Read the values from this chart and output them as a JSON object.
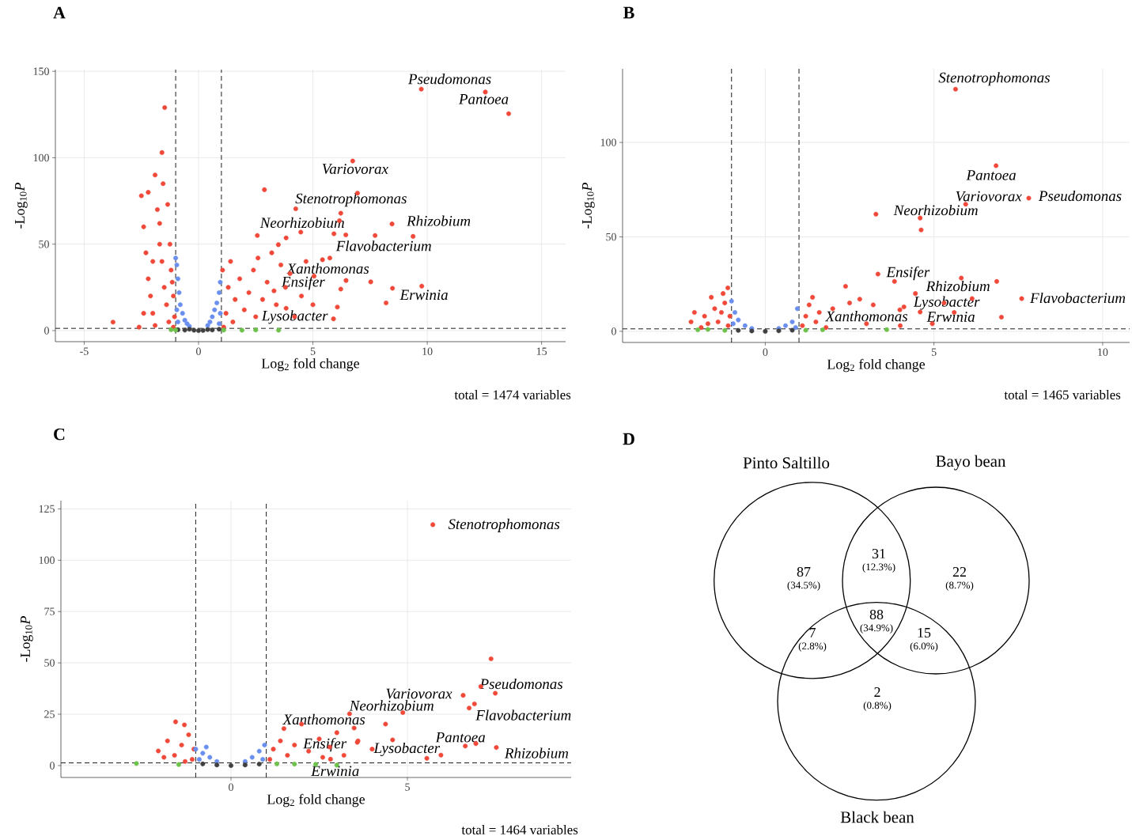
{
  "chart_data": [
    {
      "type": "scatter",
      "title": "A",
      "xlabel": "Log$_{2}$ fold change",
      "ylabel": "-Log$_{10}$*P*",
      "xlim": [
        -6.26,
        16.05
      ],
      "ylim": [
        -6.4,
        151
      ],
      "xticks": [
        -5,
        0,
        5,
        10,
        15
      ],
      "yticks": [
        0,
        50,
        100,
        150
      ],
      "grid": true,
      "series": [
        {
          "color": "#f0493a",
          "x": [
            -3.74,
            -2.6,
            -2.5,
            -2.4,
            -2.2,
            -2.3,
            -2.2,
            -2.1,
            -2.0,
            -2.4,
            -1.9,
            -1.8,
            -1.7,
            -1.6,
            -1.48,
            -1.6,
            -1.5,
            -1.4,
            -1.3,
            -1.2,
            -1.1,
            -1.05,
            -1.9,
            -1.7,
            -2.0,
            -1.35,
            -1.55,
            -1.25,
            -1.15,
            -1.1,
            1.1,
            1.2,
            1.3,
            1.5,
            1.6,
            1.8,
            2.0,
            2.2,
            2.4,
            2.5,
            2.6,
            2.8,
            3.0,
            3.2,
            3.4,
            3.6,
            3.8,
            4.0,
            4.2,
            4.5,
            4.7,
            5.0,
            1.05,
            1.4,
            2.88,
            4.25,
            2.57,
            3.83,
            3.49,
            6.95,
            9.38,
            8.2,
            8.48,
            7.53,
            6.45,
            6.22,
            6.07,
            5.9,
            6.44,
            6.16,
            5.92,
            5.74,
            5.05,
            13.56,
            9.74,
            12.54,
            6.74,
            6.22,
            8.46,
            4.47,
            7.72,
            5.42,
            3.3,
            3.83,
            9.76
          ],
          "values": [
            4.9,
            2,
            78,
            60,
            80,
            45,
            30,
            20,
            10,
            10,
            90,
            70,
            50,
            103,
            129,
            40,
            25,
            15,
            5,
            35,
            20,
            8,
            3,
            62,
            40,
            73,
            85,
            50,
            28,
            2,
            2,
            10,
            25,
            5,
            18,
            30,
            12,
            22,
            35,
            8,
            42,
            18,
            28,
            45,
            15,
            38,
            25,
            33,
            8,
            20,
            40,
            15,
            35,
            40,
            81.5,
            70.5,
            55,
            53.6,
            49.7,
            79.5,
            54.5,
            16,
            24.5,
            28.2,
            29,
            24,
            13.6,
            6.8,
            55.4,
            63.6,
            56,
            42,
            31.5,
            125.5,
            139.7,
            138,
            98.1,
            67.9,
            61.7,
            57,
            55,
            41,
            23,
            12.9,
            25.7
          ]
        },
        {
          "color": "#6a8fef",
          "x": [
            -1,
            -0.95,
            -0.9,
            -0.85,
            -0.8,
            -0.7,
            -0.6,
            -0.5,
            -0.4,
            0.4,
            0.5,
            0.6,
            0.7,
            0.8,
            0.9,
            0.95,
            -0.9,
            0.9,
            -0.95,
            0.95
          ],
          "values": [
            42,
            38,
            30,
            22,
            15,
            10,
            6,
            4,
            2.5,
            3,
            5,
            8,
            12,
            16,
            22,
            28,
            5,
            4,
            12,
            10
          ]
        },
        {
          "color": "#404040",
          "x": [
            -0.9,
            -0.6,
            -0.4,
            -0.2,
            0,
            0.2,
            0.4,
            0.6,
            0.9
          ],
          "values": [
            0.5,
            0.3,
            0.8,
            0.2,
            0,
            0.1,
            0.6,
            0.4,
            0.8
          ]
        },
        {
          "color": "#6cc24a",
          "x": [
            -1.2,
            -1.0,
            1.1,
            1.9,
            2.5,
            3.5
          ],
          "values": [
            0.5,
            0.3,
            0.3,
            0.2,
            0.4,
            0.2
          ]
        }
      ],
      "ref_lines": [
        {
          "axis": "x",
          "value": -1,
          "line_style": "dashed"
        },
        {
          "axis": "x",
          "value": 1,
          "line_style": "dashed"
        },
        {
          "axis": "y",
          "value": 1.3,
          "line_style": "dashed"
        }
      ],
      "annotations": [
        {
          "text": "Pseudomonas",
          "x": 9.74,
          "y": 139.7
        },
        {
          "text": "Pantoea",
          "x": 12.54,
          "y": 138
        },
        {
          "text": "Variovorax",
          "x": 6.74,
          "y": 98.1
        },
        {
          "text": "Stenotrophomonas",
          "x": 6.22,
          "y": 67.9
        },
        {
          "text": "Rhizobium",
          "x": 8.46,
          "y": 61.7
        },
        {
          "text": "Neorhizobium",
          "x": 4.47,
          "y": 57
        },
        {
          "text": "Flavobacterium",
          "x": 7.72,
          "y": 55
        },
        {
          "text": "Xanthomonas",
          "x": 5.42,
          "y": 41
        },
        {
          "text": "Ensifer",
          "x": 3.3,
          "y": 23
        },
        {
          "text": "Lysobacter",
          "x": 3.83,
          "y": 12.9
        },
        {
          "text": "Erwinia",
          "x": 9.76,
          "y": 25.7
        },
        "total = 1474 variables"
      ]
    },
    {
      "type": "scatter",
      "title": "B",
      "xlabel": "Log$_{2}$ fold change",
      "ylabel": "-Log$_{10}$*P*",
      "xlim": [
        -4.23,
        10.8
      ],
      "ylim": [
        -5.9,
        139
      ],
      "xticks": [
        0,
        5,
        10
      ],
      "yticks": [
        0,
        50,
        100
      ],
      "grid": true,
      "series": [
        {
          "color": "#f0493a",
          "x": [
            -2.2,
            -2.1,
            -1.9,
            -1.8,
            -1.6,
            -1.5,
            -1.4,
            -1.3,
            -1.2,
            -1.11,
            -1.1,
            -1.05,
            -1.7,
            -1.25,
            1.1,
            1.2,
            1.3,
            1.5,
            1.6,
            1.8,
            2.0,
            2.38,
            2.5,
            3.0,
            3.2,
            3.83,
            4.0,
            4.45,
            4.95,
            5.3,
            6.13,
            3.28,
            4.62,
            6.86,
            7.0,
            1.4,
            2.8,
            5.6,
            5.64,
            6.84,
            5.94,
            7.81,
            4.59,
            3.34,
            5.81,
            7.6,
            4.11,
            3.99,
            4.59
          ],
          "values": [
            5,
            10,
            2,
            8,
            18,
            12,
            5,
            10,
            15,
            23,
            3,
            8,
            4,
            20,
            3,
            8,
            14,
            5,
            10,
            2,
            12,
            23.8,
            15,
            4,
            14,
            26.4,
            3,
            20,
            4,
            15,
            17.3,
            62,
            53.7,
            26.4,
            7.5,
            18,
            17,
            10,
            128.2,
            87.7,
            67.3,
            70.5,
            60,
            30.3,
            28.2,
            17.3,
            12.9,
            11.4,
            10.2
          ]
        },
        {
          "color": "#6a8fef",
          "x": [
            -1,
            -0.9,
            -0.8,
            -0.6,
            -0.4,
            0.4,
            0.6,
            0.8,
            0.95,
            -0.95,
            0.9
          ],
          "values": [
            16,
            10,
            6,
            3,
            1.5,
            1.5,
            3,
            5,
            12,
            4,
            2
          ]
        },
        {
          "color": "#404040",
          "x": [
            -0.8,
            -0.4,
            0,
            0.4,
            0.8
          ],
          "values": [
            0.5,
            0.2,
            0,
            0.3,
            0.6
          ]
        },
        {
          "color": "#6cc24a",
          "x": [
            -2.0,
            -1.7,
            -1.2,
            1.2,
            1.7,
            3.6
          ],
          "values": [
            0.8,
            1.0,
            0.5,
            0.6,
            0.8,
            0.9
          ]
        }
      ],
      "ref_lines": [
        {
          "axis": "x",
          "value": -1,
          "line_style": "dashed"
        },
        {
          "axis": "x",
          "value": 1,
          "line_style": "dashed"
        },
        {
          "axis": "y",
          "value": 1.3,
          "line_style": "dashed"
        }
      ],
      "annotations": [
        {
          "text": "Stenotrophomonas",
          "x": 5.64,
          "y": 128.2
        },
        {
          "text": "Pantoea",
          "x": 6.84,
          "y": 87.7
        },
        {
          "text": "Variovorax",
          "x": 5.94,
          "y": 67.3
        },
        {
          "text": "Pseudomonas",
          "x": 7.81,
          "y": 70.5
        },
        {
          "text": "Neorhizobium",
          "x": 4.59,
          "y": 60
        },
        {
          "text": "Ensifer",
          "x": 3.34,
          "y": 30.3
        },
        {
          "text": "Rhizobium",
          "x": 5.81,
          "y": 28.2
        },
        {
          "text": "Flavobacterium",
          "x": 7.6,
          "y": 17.3
        },
        {
          "text": "Lysobacter",
          "x": 4.11,
          "y": 12.9
        },
        {
          "text": "Xanthomonas",
          "x": 3.99,
          "y": 11.4
        },
        {
          "text": "Erwinia",
          "x": 4.59,
          "y": 10.2
        },
        "total = 1465 variables"
      ]
    },
    {
      "type": "scatter",
      "title": "C",
      "xlabel": "Log$_{2}$ fold change",
      "ylabel": "-Log$_{10}$*P*",
      "xlim": [
        -4.82,
        9.64
      ],
      "ylim": [
        -5.8,
        129
      ],
      "xticks": [
        0,
        5
      ],
      "yticks": [
        0,
        25,
        50,
        75,
        100,
        125
      ],
      "grid": true,
      "series": [
        {
          "color": "#f0493a",
          "x": [
            -2.06,
            -1.57,
            -1.32,
            -1.8,
            -1.6,
            -1.4,
            -1.2,
            -1.1,
            -1.05,
            -1.9,
            -1.3,
            1.1,
            1.2,
            1.4,
            1.6,
            1.8,
            2.0,
            2.2,
            2.5,
            2.8,
            3.0,
            3.36,
            3.2,
            3.6,
            4.0,
            4.38,
            5.55,
            5.95,
            6.94,
            7.37,
            7.08,
            6.75,
            1.5,
            2.6,
            5.72,
            7.49,
            6.58,
            6.9,
            4.87,
            3.49,
            3.58,
            4.58,
            6.64,
            7.52,
            2.82
          ],
          "values": [
            7.1,
            21.3,
            19.8,
            12,
            5,
            10,
            15,
            3,
            8,
            4,
            2,
            3,
            8,
            12,
            5,
            10,
            20.2,
            7,
            13,
            9,
            16,
            25.2,
            5,
            12,
            8,
            20.2,
            3.5,
            5.1,
            10.7,
            52,
            38.5,
            28,
            18,
            4,
            117.3,
            35.2,
            34.2,
            30,
            25.8,
            18.3,
            11.3,
            12.5,
            9.5,
            8.8,
            3.1
          ]
        },
        {
          "color": "#6a8fef",
          "x": [
            -1,
            -0.8,
            -0.7,
            -0.6,
            -0.4,
            0.4,
            0.6,
            0.8,
            0.95,
            -0.9,
            0.9
          ],
          "values": [
            8,
            6,
            9,
            4,
            2,
            2,
            4,
            7,
            10,
            3,
            3
          ]
        },
        {
          "color": "#404040",
          "x": [
            -0.8,
            -0.4,
            0,
            0.4,
            0.8
          ],
          "values": [
            0.8,
            0.3,
            0,
            0.3,
            0.7
          ]
        },
        {
          "color": "#6cc24a",
          "x": [
            -2.68,
            -1.48,
            1.3,
            1.8,
            2.4,
            3.0
          ],
          "values": [
            1.0,
            0.5,
            0.8,
            0.7,
            0.6,
            0.2
          ]
        }
      ],
      "ref_lines": [
        {
          "axis": "x",
          "value": -1,
          "line_style": "dashed"
        },
        {
          "axis": "x",
          "value": 1,
          "line_style": "dashed"
        },
        {
          "axis": "y",
          "value": 1.3,
          "line_style": "dashed"
        }
      ],
      "annotations": [
        {
          "text": "Stenotrophomonas",
          "x": 5.72,
          "y": 117.3
        },
        {
          "text": "Pseudomonas",
          "x": 7.49,
          "y": 35.2
        },
        {
          "text": "Variovorax",
          "x": 6.58,
          "y": 34.2
        },
        {
          "text": "Flavobacterium",
          "x": 6.9,
          "y": 30
        },
        {
          "text": "Neorhizobium",
          "x": 4.87,
          "y": 25.8
        },
        {
          "text": "Xanthomonas",
          "x": 3.49,
          "y": 18.3
        },
        {
          "text": "Ensifer",
          "x": 3.58,
          "y": 11.3
        },
        {
          "text": "Lysobacter",
          "x": 4.58,
          "y": 12.5
        },
        {
          "text": "Pantoea",
          "x": 6.64,
          "y": 9.5
        },
        {
          "text": "Rhizobium",
          "x": 7.52,
          "y": 8.8
        },
        {
          "text": "Erwinia",
          "x": 2.82,
          "y": 3.1
        },
        "total = 1464 variables"
      ]
    },
    {
      "type": "other",
      "title": "D",
      "categories": [
        "(34.5%)",
        "(12.3%)",
        "(8.7%)",
        "(2.8%)",
        "(34.9%)",
        "(6.0%)",
        "(0.8%)"
      ],
      "values": [
        87,
        31,
        22,
        7,
        88,
        15,
        2
      ],
      "data_labels": true,
      "annotations": [
        "Pinto Saltillo",
        "Bayo bean",
        "Black bean"
      ]
    }
  ]
}
